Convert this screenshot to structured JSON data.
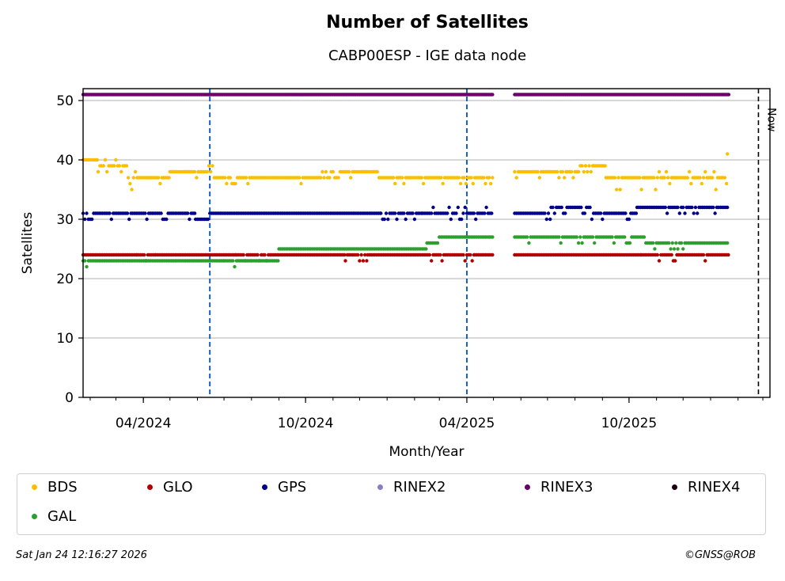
{
  "chart_data": {
    "type": "scatter",
    "title": "Number of Satellites",
    "subtitle": "CABP00ESP - IGE data node",
    "xlabel": "Month/Year",
    "ylabel": "Satellites",
    "ylim": [
      0,
      52
    ],
    "yticks": [
      0,
      10,
      20,
      30,
      40,
      50
    ],
    "xlim": [
      "2024-01-24",
      "2026-03-09"
    ],
    "xticks": [
      {
        "date": "2024-04-01",
        "label": "04/2024"
      },
      {
        "date": "2024-10-01",
        "label": "10/2024"
      },
      {
        "date": "2025-04-01",
        "label": "04/2025"
      },
      {
        "date": "2025-10-01",
        "label": "10/2025"
      }
    ],
    "grid": "y",
    "now_line": {
      "date": "2026-02-24",
      "label": "Now"
    },
    "event_lines": [
      "2024-06-15",
      "2025-04-01"
    ],
    "data_gap": [
      "2025-05-01",
      "2025-05-25"
    ],
    "series": [
      {
        "name": "RINEX3",
        "color": "#6a006a",
        "segments": [
          {
            "from": "2024-01-24",
            "to": "2025-05-01",
            "values": [
              51
            ]
          },
          {
            "from": "2025-05-25",
            "to": "2026-01-22",
            "values": [
              51
            ]
          }
        ]
      },
      {
        "name": "BDS",
        "color": "#fbbf00",
        "segments": [
          {
            "from": "2024-01-24",
            "to": "2024-02-10",
            "values": [
              38,
              39,
              40,
              41
            ]
          },
          {
            "from": "2024-02-10",
            "to": "2024-03-15",
            "values": [
              38,
              39,
              40
            ]
          },
          {
            "from": "2024-03-15",
            "to": "2024-05-01",
            "values": [
              35,
              36,
              37,
              38
            ]
          },
          {
            "from": "2024-05-01",
            "to": "2024-06-20",
            "values": [
              37,
              38,
              39
            ]
          },
          {
            "from": "2024-06-20",
            "to": "2024-10-20",
            "values": [
              36,
              37
            ]
          },
          {
            "from": "2024-10-20",
            "to": "2024-12-25",
            "values": [
              37,
              38
            ]
          },
          {
            "from": "2024-12-25",
            "to": "2025-05-01",
            "values": [
              36,
              37
            ]
          },
          {
            "from": "2025-05-25",
            "to": "2025-08-05",
            "values": [
              37,
              38
            ]
          },
          {
            "from": "2025-08-05",
            "to": "2025-09-05",
            "values": [
              38,
              39
            ]
          },
          {
            "from": "2025-09-05",
            "to": "2026-01-20",
            "values": [
              35,
              36,
              37,
              38
            ]
          },
          {
            "from": "2026-01-20",
            "to": "2026-01-22",
            "values": [
              40,
              41
            ]
          }
        ]
      },
      {
        "name": "GPS",
        "color": "#00008b",
        "segments": [
          {
            "from": "2024-01-24",
            "to": "2024-05-30",
            "values": [
              30,
              31
            ]
          },
          {
            "from": "2024-05-30",
            "to": "2024-06-15",
            "values": [
              30
            ]
          },
          {
            "from": "2024-06-15",
            "to": "2024-12-25",
            "values": [
              31
            ]
          },
          {
            "from": "2024-12-25",
            "to": "2025-02-10",
            "values": [
              30,
              31
            ]
          },
          {
            "from": "2025-02-10",
            "to": "2025-05-01",
            "values": [
              30,
              31,
              32
            ]
          },
          {
            "from": "2025-05-25",
            "to": "2025-07-05",
            "values": [
              30,
              31
            ]
          },
          {
            "from": "2025-07-05",
            "to": "2025-08-20",
            "values": [
              31,
              32
            ]
          },
          {
            "from": "2025-08-20",
            "to": "2025-10-10",
            "values": [
              30,
              31
            ]
          },
          {
            "from": "2025-10-10",
            "to": "2026-01-22",
            "values": [
              31,
              32
            ]
          }
        ]
      },
      {
        "name": "GLO",
        "color": "#b20000",
        "segments": [
          {
            "from": "2024-01-24",
            "to": "2024-03-25",
            "values": [
              24
            ]
          },
          {
            "from": "2024-03-25",
            "to": "2024-04-15",
            "values": [
              23,
              24
            ]
          },
          {
            "from": "2024-04-15",
            "to": "2024-07-15",
            "values": [
              24
            ]
          },
          {
            "from": "2024-07-15",
            "to": "2024-08-20",
            "values": [
              23,
              24
            ]
          },
          {
            "from": "2024-08-20",
            "to": "2024-11-15",
            "values": [
              24
            ]
          },
          {
            "from": "2024-11-15",
            "to": "2024-12-10",
            "values": [
              23,
              24
            ]
          },
          {
            "from": "2024-12-10",
            "to": "2025-02-10",
            "values": [
              24
            ]
          },
          {
            "from": "2025-02-10",
            "to": "2025-04-10",
            "values": [
              23,
              24
            ]
          },
          {
            "from": "2025-04-10",
            "to": "2025-05-01",
            "values": [
              24
            ]
          },
          {
            "from": "2025-05-25",
            "to": "2025-10-15",
            "values": [
              24
            ]
          },
          {
            "from": "2025-10-15",
            "to": "2026-01-22",
            "values": [
              23,
              24
            ]
          }
        ]
      },
      {
        "name": "GAL",
        "color": "#2ca02c",
        "segments": [
          {
            "from": "2024-01-24",
            "to": "2024-02-15",
            "values": [
              22,
              23
            ]
          },
          {
            "from": "2024-02-15",
            "to": "2024-07-01",
            "values": [
              23
            ]
          },
          {
            "from": "2024-07-01",
            "to": "2024-08-01",
            "values": [
              22,
              23
            ]
          },
          {
            "from": "2024-08-01",
            "to": "2024-09-01",
            "values": [
              23
            ]
          },
          {
            "from": "2024-09-01",
            "to": "2025-02-15",
            "values": [
              25
            ]
          },
          {
            "from": "2025-02-15",
            "to": "2025-03-01",
            "values": [
              26
            ]
          },
          {
            "from": "2025-03-01",
            "to": "2025-05-01",
            "values": [
              27
            ]
          },
          {
            "from": "2025-05-25",
            "to": "2025-10-20",
            "values": [
              26,
              27
            ]
          },
          {
            "from": "2025-10-20",
            "to": "2026-01-22",
            "values": [
              25,
              26
            ]
          }
        ]
      },
      {
        "name": "RINEX2",
        "color": "#8a7fc6",
        "segments": []
      },
      {
        "name": "RINEX4",
        "color": "#1a0010",
        "segments": []
      }
    ]
  },
  "legend": [
    {
      "name": "BDS",
      "color": "#fbbf00"
    },
    {
      "name": "GLO",
      "color": "#b20000"
    },
    {
      "name": "GPS",
      "color": "#00008b"
    },
    {
      "name": "RINEX2",
      "color": "#8a7fc6"
    },
    {
      "name": "RINEX3",
      "color": "#6a006a"
    },
    {
      "name": "RINEX4",
      "color": "#1a0010"
    },
    {
      "name": "GAL",
      "color": "#2ca02c"
    }
  ],
  "footer": {
    "timestamp": "Sat Jan 24 12:16:27 2026",
    "credit": "©GNSS@ROB"
  }
}
